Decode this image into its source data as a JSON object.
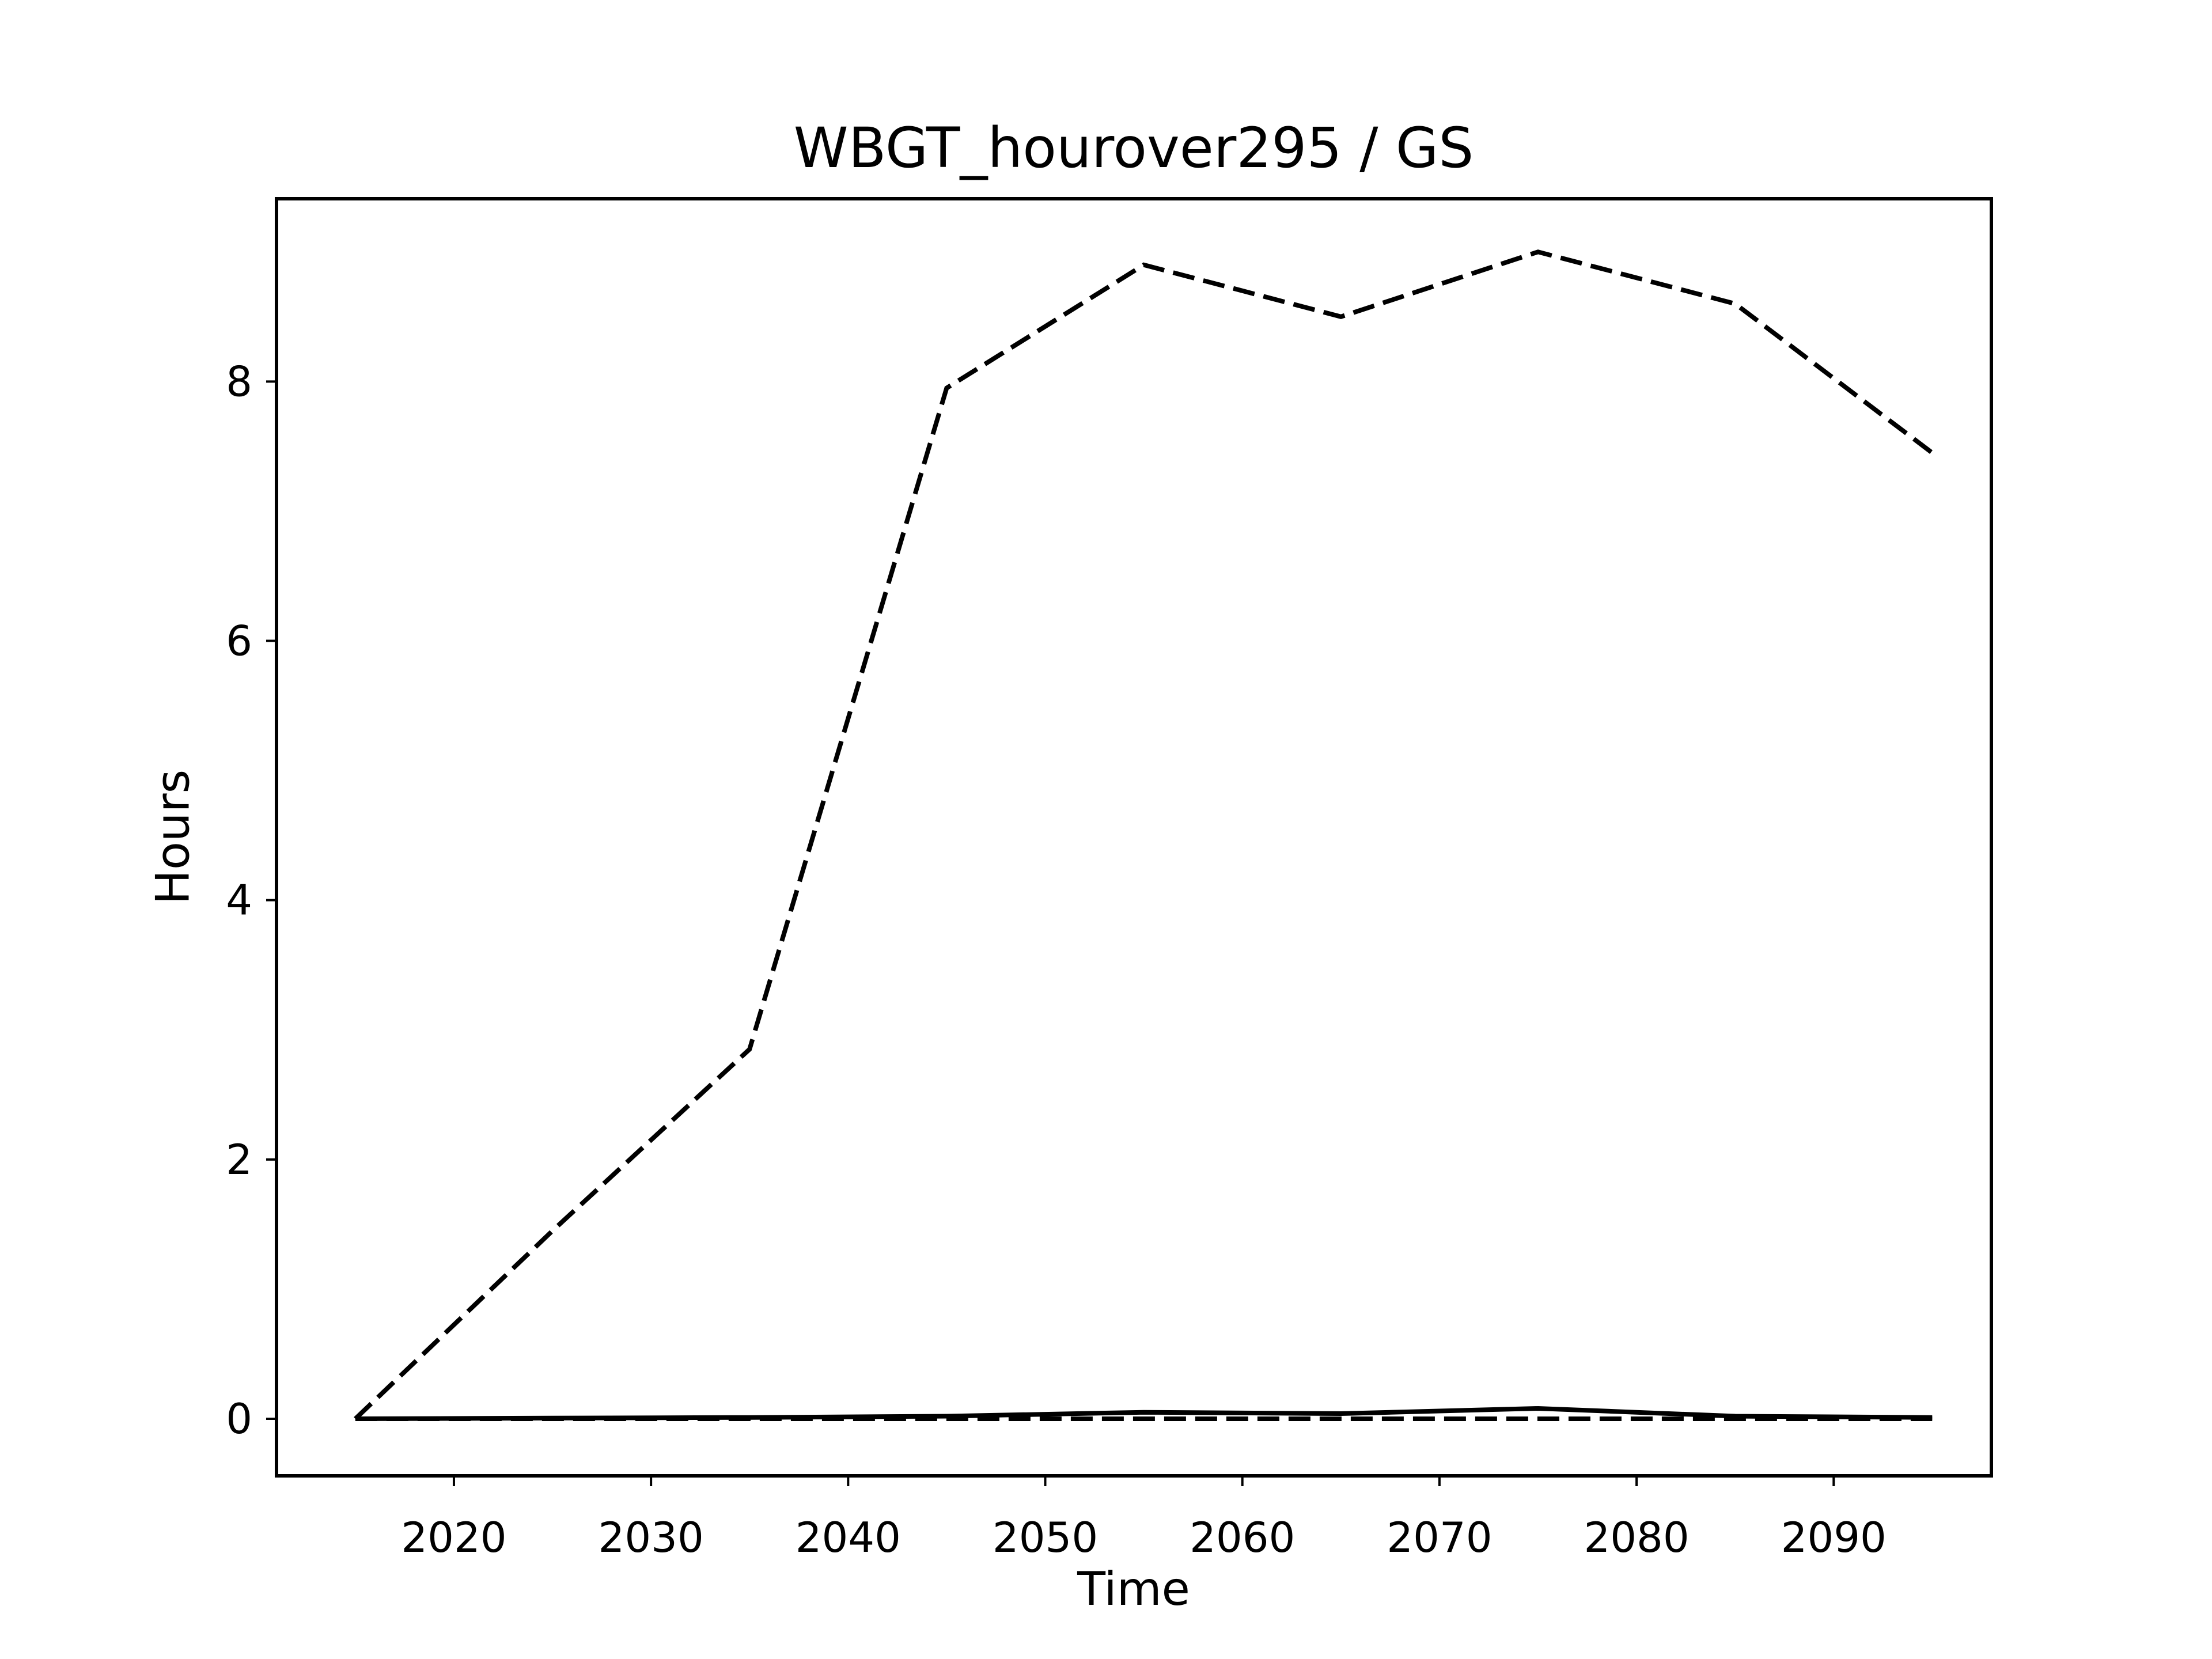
{
  "figure": {
    "background_color": "#ffffff",
    "foreground_color": "#000000"
  },
  "chart_data": {
    "type": "line",
    "title": "WBGT_hourover295 / GS",
    "xlabel": "Time",
    "ylabel": "Hours",
    "x": [
      2015,
      2025,
      2035,
      2045,
      2055,
      2065,
      2075,
      2085,
      2095
    ],
    "series": [
      {
        "name": "series-1",
        "line_style": "dashed",
        "color": "#000000",
        "values": [
          0.0,
          1.45,
          2.85,
          7.95,
          8.9,
          8.5,
          9.0,
          8.6,
          7.45
        ]
      },
      {
        "name": "series-2",
        "line_style": "solid",
        "color": "#000000",
        "values": [
          0.0,
          0.005,
          0.01,
          0.02,
          0.05,
          0.04,
          0.08,
          0.02,
          0.01
        ]
      },
      {
        "name": "series-3",
        "line_style": "dashed",
        "color": "#000000",
        "values": [
          0.0,
          0.0,
          0.0,
          0.0,
          0.0,
          0.0,
          0.0,
          0.0,
          0.0
        ]
      }
    ],
    "xticks": [
      2020,
      2030,
      2040,
      2050,
      2060,
      2070,
      2080,
      2090
    ],
    "yticks": [
      0,
      2,
      4,
      6,
      8
    ],
    "xlim": [
      2011,
      2098
    ],
    "ylim": [
      -0.44,
      9.41
    ],
    "grid": false,
    "legend_position": "none"
  }
}
